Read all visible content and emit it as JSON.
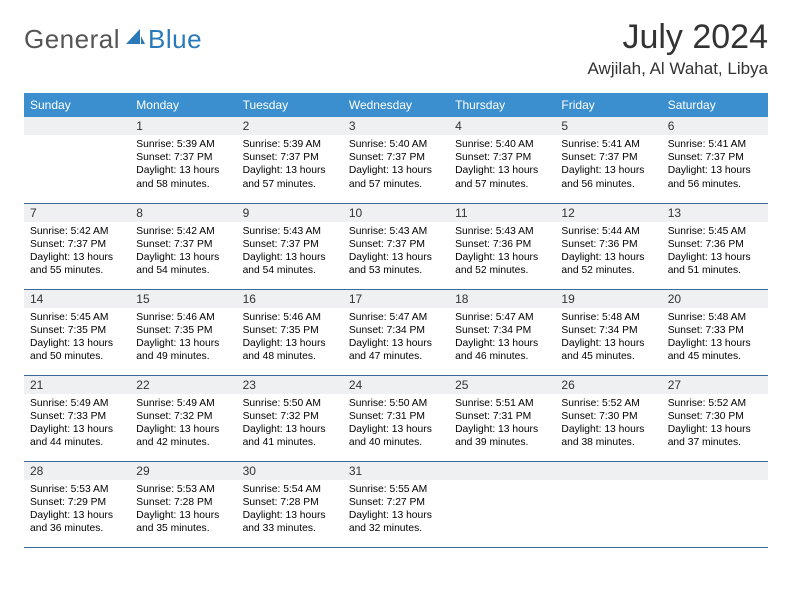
{
  "logo": {
    "text1": "General",
    "text2": "Blue"
  },
  "title": "July 2024",
  "location": "Awjilah, Al Wahat, Libya",
  "colors": {
    "header_bg": "#3b8fcf",
    "header_text": "#ffffff",
    "daynum_bg": "#eef0f1",
    "border": "#3b6a99",
    "logo_gray": "#555555",
    "logo_blue": "#2a7ab9"
  },
  "weekdays": [
    "Sunday",
    "Monday",
    "Tuesday",
    "Wednesday",
    "Thursday",
    "Friday",
    "Saturday"
  ],
  "weeks": [
    [
      null,
      {
        "n": "1",
        "sr": "5:39 AM",
        "ss": "7:37 PM",
        "dl": "13 hours and 58 minutes."
      },
      {
        "n": "2",
        "sr": "5:39 AM",
        "ss": "7:37 PM",
        "dl": "13 hours and 57 minutes."
      },
      {
        "n": "3",
        "sr": "5:40 AM",
        "ss": "7:37 PM",
        "dl": "13 hours and 57 minutes."
      },
      {
        "n": "4",
        "sr": "5:40 AM",
        "ss": "7:37 PM",
        "dl": "13 hours and 57 minutes."
      },
      {
        "n": "5",
        "sr": "5:41 AM",
        "ss": "7:37 PM",
        "dl": "13 hours and 56 minutes."
      },
      {
        "n": "6",
        "sr": "5:41 AM",
        "ss": "7:37 PM",
        "dl": "13 hours and 56 minutes."
      }
    ],
    [
      {
        "n": "7",
        "sr": "5:42 AM",
        "ss": "7:37 PM",
        "dl": "13 hours and 55 minutes."
      },
      {
        "n": "8",
        "sr": "5:42 AM",
        "ss": "7:37 PM",
        "dl": "13 hours and 54 minutes."
      },
      {
        "n": "9",
        "sr": "5:43 AM",
        "ss": "7:37 PM",
        "dl": "13 hours and 54 minutes."
      },
      {
        "n": "10",
        "sr": "5:43 AM",
        "ss": "7:37 PM",
        "dl": "13 hours and 53 minutes."
      },
      {
        "n": "11",
        "sr": "5:43 AM",
        "ss": "7:36 PM",
        "dl": "13 hours and 52 minutes."
      },
      {
        "n": "12",
        "sr": "5:44 AM",
        "ss": "7:36 PM",
        "dl": "13 hours and 52 minutes."
      },
      {
        "n": "13",
        "sr": "5:45 AM",
        "ss": "7:36 PM",
        "dl": "13 hours and 51 minutes."
      }
    ],
    [
      {
        "n": "14",
        "sr": "5:45 AM",
        "ss": "7:35 PM",
        "dl": "13 hours and 50 minutes."
      },
      {
        "n": "15",
        "sr": "5:46 AM",
        "ss": "7:35 PM",
        "dl": "13 hours and 49 minutes."
      },
      {
        "n": "16",
        "sr": "5:46 AM",
        "ss": "7:35 PM",
        "dl": "13 hours and 48 minutes."
      },
      {
        "n": "17",
        "sr": "5:47 AM",
        "ss": "7:34 PM",
        "dl": "13 hours and 47 minutes."
      },
      {
        "n": "18",
        "sr": "5:47 AM",
        "ss": "7:34 PM",
        "dl": "13 hours and 46 minutes."
      },
      {
        "n": "19",
        "sr": "5:48 AM",
        "ss": "7:34 PM",
        "dl": "13 hours and 45 minutes."
      },
      {
        "n": "20",
        "sr": "5:48 AM",
        "ss": "7:33 PM",
        "dl": "13 hours and 45 minutes."
      }
    ],
    [
      {
        "n": "21",
        "sr": "5:49 AM",
        "ss": "7:33 PM",
        "dl": "13 hours and 44 minutes."
      },
      {
        "n": "22",
        "sr": "5:49 AM",
        "ss": "7:32 PM",
        "dl": "13 hours and 42 minutes."
      },
      {
        "n": "23",
        "sr": "5:50 AM",
        "ss": "7:32 PM",
        "dl": "13 hours and 41 minutes."
      },
      {
        "n": "24",
        "sr": "5:50 AM",
        "ss": "7:31 PM",
        "dl": "13 hours and 40 minutes."
      },
      {
        "n": "25",
        "sr": "5:51 AM",
        "ss": "7:31 PM",
        "dl": "13 hours and 39 minutes."
      },
      {
        "n": "26",
        "sr": "5:52 AM",
        "ss": "7:30 PM",
        "dl": "13 hours and 38 minutes."
      },
      {
        "n": "27",
        "sr": "5:52 AM",
        "ss": "7:30 PM",
        "dl": "13 hours and 37 minutes."
      }
    ],
    [
      {
        "n": "28",
        "sr": "5:53 AM",
        "ss": "7:29 PM",
        "dl": "13 hours and 36 minutes."
      },
      {
        "n": "29",
        "sr": "5:53 AM",
        "ss": "7:28 PM",
        "dl": "13 hours and 35 minutes."
      },
      {
        "n": "30",
        "sr": "5:54 AM",
        "ss": "7:28 PM",
        "dl": "13 hours and 33 minutes."
      },
      {
        "n": "31",
        "sr": "5:55 AM",
        "ss": "7:27 PM",
        "dl": "13 hours and 32 minutes."
      },
      null,
      null,
      null
    ]
  ],
  "labels": {
    "sunrise": "Sunrise:",
    "sunset": "Sunset:",
    "daylight": "Daylight:"
  }
}
